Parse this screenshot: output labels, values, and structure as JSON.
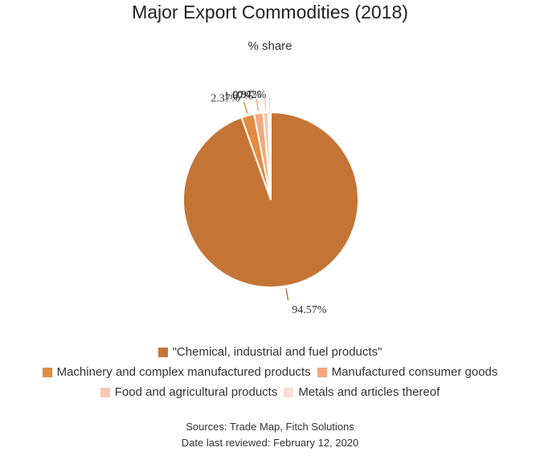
{
  "chart_data": {
    "type": "pie",
    "title": "Major Export Commodities (2018)",
    "subtitle": "% share",
    "slices": [
      {
        "name": "\"Chemical, industrial and fuel products\"",
        "value": 94.57,
        "label": "94.57%",
        "color": "#c47535"
      },
      {
        "name": "Machinery and complex manufactured products",
        "value": 2.37,
        "label": "2.37%",
        "color": "#e38b42"
      },
      {
        "name": "Manufactured consumer goods",
        "value": 1.67,
        "label": "1.67%",
        "color": "#f3a87a"
      },
      {
        "name": "Food and agricultural products",
        "value": 0.97,
        "label": "0.97%",
        "color": "#f7c8b0"
      },
      {
        "name": "Metals and articles thereof",
        "value": 0.42,
        "label": "0.42%",
        "color": "#fadfd2"
      }
    ],
    "legend_position": "bottom"
  },
  "footer": {
    "sources": "Sources: Trade Map, Fitch Solutions",
    "reviewed": "Date last reviewed: February 12, 2020"
  }
}
